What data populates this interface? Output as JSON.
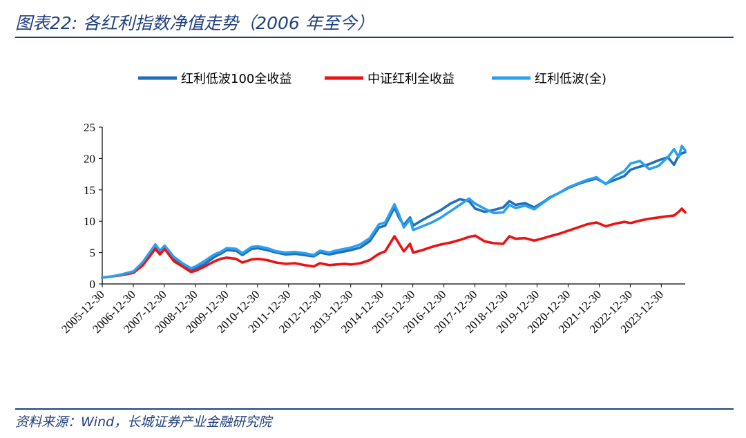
{
  "title": "图表22:  各红利指数净值走势（2006 年至今）",
  "source": "资料来源：Wind，长城证券产业金融研究院",
  "chart_data": {
    "type": "line",
    "title": "图表22:  各红利指数净值走势（2006 年至今）",
    "xlabel": "",
    "ylabel": "",
    "ylim": [
      0,
      25
    ],
    "yticks": [
      0,
      5,
      10,
      15,
      20,
      25
    ],
    "xlim": [
      2005.99,
      2024.76
    ],
    "xticks": [
      "2005-12-30",
      "2006-12-30",
      "2007-12-30",
      "2008-12-30",
      "2009-12-30",
      "2010-12-30",
      "2011-12-30",
      "2012-12-30",
      "2013-12-30",
      "2014-12-30",
      "2015-12-30",
      "2016-12-30",
      "2017-12-30",
      "2018-12-30",
      "2019-12-30",
      "2020-12-30",
      "2021-12-30",
      "2022-12-30",
      "2023-12-30"
    ],
    "grid": false,
    "legend_position": "top",
    "series": [
      {
        "name": "红利低波100全收益",
        "color": "#1f6fbd",
        "x": [
          2005.99,
          2006.3,
          2006.6,
          2007.0,
          2007.3,
          2007.5,
          2007.7,
          2007.85,
          2008.0,
          2008.3,
          2008.6,
          2008.85,
          2009.0,
          2009.3,
          2009.6,
          2009.8,
          2010.0,
          2010.3,
          2010.5,
          2010.8,
          2011.0,
          2011.3,
          2011.6,
          2011.9,
          2012.2,
          2012.5,
          2012.8,
          2013.0,
          2013.3,
          2013.5,
          2013.8,
          2014.0,
          2014.3,
          2014.6,
          2014.9,
          2015.1,
          2015.4,
          2015.55,
          2015.7,
          2015.9,
          2016.0,
          2016.3,
          2016.6,
          2016.9,
          2017.2,
          2017.5,
          2017.8,
          2018.0,
          2018.3,
          2018.6,
          2018.9,
          2019.1,
          2019.3,
          2019.6,
          2019.9,
          2020.2,
          2020.4,
          2020.7,
          2021.0,
          2021.3,
          2021.6,
          2021.9,
          2022.2,
          2022.5,
          2022.8,
          2023.0,
          2023.3,
          2023.6,
          2023.9,
          2024.2,
          2024.4,
          2024.55,
          2024.65,
          2024.76
        ],
        "y": [
          1.0,
          1.2,
          1.4,
          1.8,
          3.2,
          4.5,
          5.8,
          5.0,
          5.8,
          4.0,
          3.0,
          2.2,
          2.4,
          3.2,
          4.3,
          4.8,
          5.4,
          5.3,
          4.6,
          5.6,
          5.7,
          5.4,
          5.0,
          4.7,
          4.8,
          4.6,
          4.4,
          5.0,
          4.7,
          4.9,
          5.2,
          5.4,
          5.8,
          6.8,
          9.0,
          9.3,
          12.2,
          10.5,
          9.4,
          10.6,
          9.3,
          10.2,
          11.0,
          11.8,
          12.8,
          13.5,
          13.2,
          12.0,
          11.5,
          11.8,
          12.2,
          13.2,
          12.6,
          12.9,
          12.2,
          13.1,
          13.8,
          14.5,
          15.3,
          15.9,
          16.4,
          16.8,
          16.0,
          16.6,
          17.2,
          18.2,
          18.7,
          19.1,
          19.7,
          20.2,
          19.0,
          20.5,
          20.8,
          21.0
        ]
      },
      {
        "name": "中证红利全收益",
        "color": "#ee1111",
        "x": [
          2005.99,
          2006.3,
          2006.6,
          2007.0,
          2007.3,
          2007.5,
          2007.7,
          2007.85,
          2008.0,
          2008.3,
          2008.6,
          2008.85,
          2009.0,
          2009.3,
          2009.6,
          2009.8,
          2010.0,
          2010.3,
          2010.5,
          2010.8,
          2011.0,
          2011.3,
          2011.6,
          2011.9,
          2012.2,
          2012.5,
          2012.8,
          2013.0,
          2013.3,
          2013.5,
          2013.8,
          2014.0,
          2014.3,
          2014.6,
          2014.9,
          2015.1,
          2015.4,
          2015.55,
          2015.7,
          2015.9,
          2016.0,
          2016.3,
          2016.6,
          2016.9,
          2017.2,
          2017.5,
          2017.8,
          2018.0,
          2018.3,
          2018.6,
          2018.9,
          2019.1,
          2019.3,
          2019.6,
          2019.9,
          2020.2,
          2020.4,
          2020.7,
          2021.0,
          2021.3,
          2021.6,
          2021.9,
          2022.2,
          2022.5,
          2022.8,
          2023.0,
          2023.3,
          2023.6,
          2023.9,
          2024.2,
          2024.4,
          2024.55,
          2024.65,
          2024.76
        ],
        "y": [
          1.0,
          1.2,
          1.4,
          1.8,
          3.0,
          4.3,
          5.6,
          4.7,
          5.6,
          3.6,
          2.7,
          1.9,
          2.1,
          2.8,
          3.6,
          4.0,
          4.2,
          4.0,
          3.4,
          3.9,
          4.0,
          3.8,
          3.4,
          3.2,
          3.3,
          3.0,
          2.8,
          3.3,
          3.0,
          3.1,
          3.2,
          3.1,
          3.3,
          3.8,
          4.8,
          5.2,
          7.6,
          6.4,
          5.2,
          6.4,
          5.0,
          5.4,
          5.9,
          6.3,
          6.6,
          7.0,
          7.5,
          7.7,
          6.8,
          6.5,
          6.4,
          7.6,
          7.2,
          7.3,
          6.9,
          7.3,
          7.6,
          8.0,
          8.5,
          9.0,
          9.5,
          9.8,
          9.2,
          9.6,
          9.9,
          9.7,
          10.1,
          10.4,
          10.6,
          10.8,
          10.9,
          11.5,
          12.0,
          11.4
        ]
      },
      {
        "name": "红利低波(全)",
        "color": "#2aa0f0",
        "x": [
          2005.99,
          2006.3,
          2006.6,
          2007.0,
          2007.3,
          2007.5,
          2007.7,
          2007.85,
          2008.0,
          2008.3,
          2008.6,
          2008.85,
          2009.0,
          2009.3,
          2009.6,
          2009.8,
          2010.0,
          2010.3,
          2010.5,
          2010.8,
          2011.0,
          2011.3,
          2011.6,
          2011.9,
          2012.2,
          2012.5,
          2012.8,
          2013.0,
          2013.3,
          2013.5,
          2013.8,
          2014.0,
          2014.3,
          2014.6,
          2014.9,
          2015.1,
          2015.4,
          2015.55,
          2015.7,
          2015.9,
          2016.0,
          2016.3,
          2016.6,
          2016.9,
          2017.2,
          2017.5,
          2017.8,
          2018.0,
          2018.3,
          2018.6,
          2018.9,
          2019.1,
          2019.3,
          2019.6,
          2019.9,
          2020.2,
          2020.4,
          2020.7,
          2021.0,
          2021.3,
          2021.6,
          2021.9,
          2022.2,
          2022.5,
          2022.8,
          2023.0,
          2023.3,
          2023.6,
          2023.9,
          2024.2,
          2024.4,
          2024.55,
          2024.65,
          2024.76
        ],
        "y": [
          1.0,
          1.2,
          1.5,
          2.0,
          3.5,
          4.9,
          6.3,
          5.3,
          6.1,
          4.3,
          3.2,
          2.5,
          2.8,
          3.7,
          4.7,
          5.1,
          5.7,
          5.6,
          4.9,
          5.9,
          6.0,
          5.7,
          5.2,
          5.0,
          5.1,
          4.9,
          4.6,
          5.3,
          5.0,
          5.3,
          5.6,
          5.8,
          6.3,
          7.3,
          9.5,
          9.8,
          12.7,
          11.0,
          9.0,
          10.3,
          8.6,
          9.2,
          9.8,
          10.6,
          11.6,
          12.6,
          13.6,
          12.8,
          12.0,
          11.3,
          11.4,
          12.6,
          12.1,
          12.5,
          11.9,
          13.0,
          13.7,
          14.5,
          15.4,
          16.0,
          16.6,
          17.0,
          15.9,
          17.2,
          18.0,
          19.2,
          19.6,
          18.3,
          18.8,
          20.2,
          21.5,
          20.2,
          22.0,
          21.3
        ]
      }
    ]
  }
}
